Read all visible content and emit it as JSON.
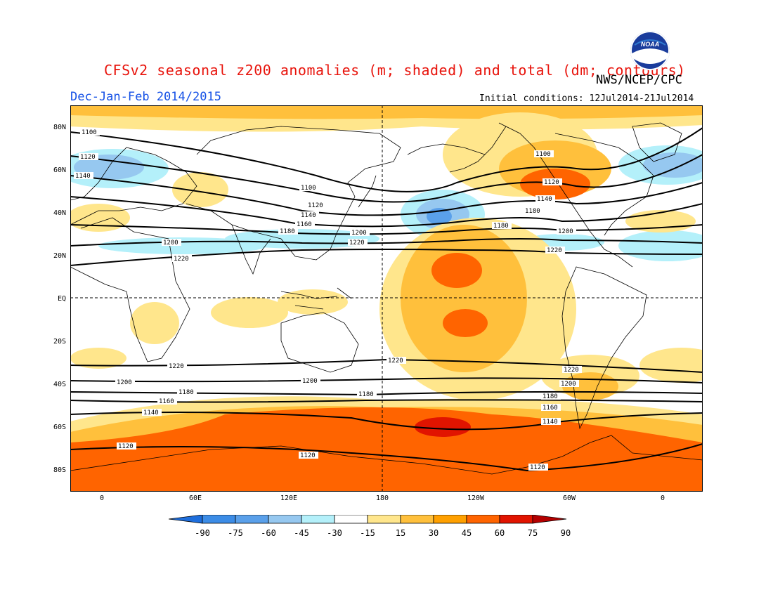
{
  "title": "CFSv2 seasonal z200 anomalies (m; shaded) and total (dm; contours)",
  "agency": "NWS/NCEP/CPC",
  "logo_text": "NOAA",
  "season": "Dec-Jan-Feb 2014/2015",
  "initial_conditions": "Initial conditions: 12Jul2014-21Jul2014",
  "lat_labels": [
    "80N",
    "60N",
    "40N",
    "20N",
    "EQ",
    "20S",
    "40S",
    "60S",
    "80S"
  ],
  "lon_labels": [
    "0",
    "60E",
    "120E",
    "180",
    "120W",
    "60W",
    "0"
  ],
  "colorbar": {
    "labels": [
      "-90",
      "-75",
      "-60",
      "-45",
      "-30",
      "-15",
      "15",
      "30",
      "45",
      "60",
      "75",
      "90"
    ],
    "colors": [
      "#1e6edc",
      "#3c8ce6",
      "#5aa0ea",
      "#96c8f0",
      "#b4f0fa",
      "#ffffff",
      "#ffe68c",
      "#ffc03c",
      "#ffa000",
      "#ff6400",
      "#e11400",
      "#b40000"
    ]
  },
  "contour_labels": [
    "1100",
    "1120",
    "1140",
    "1160",
    "1180",
    "1200",
    "1220"
  ],
  "colors": {
    "title": "#e8140c",
    "season": "#1450e6"
  }
}
